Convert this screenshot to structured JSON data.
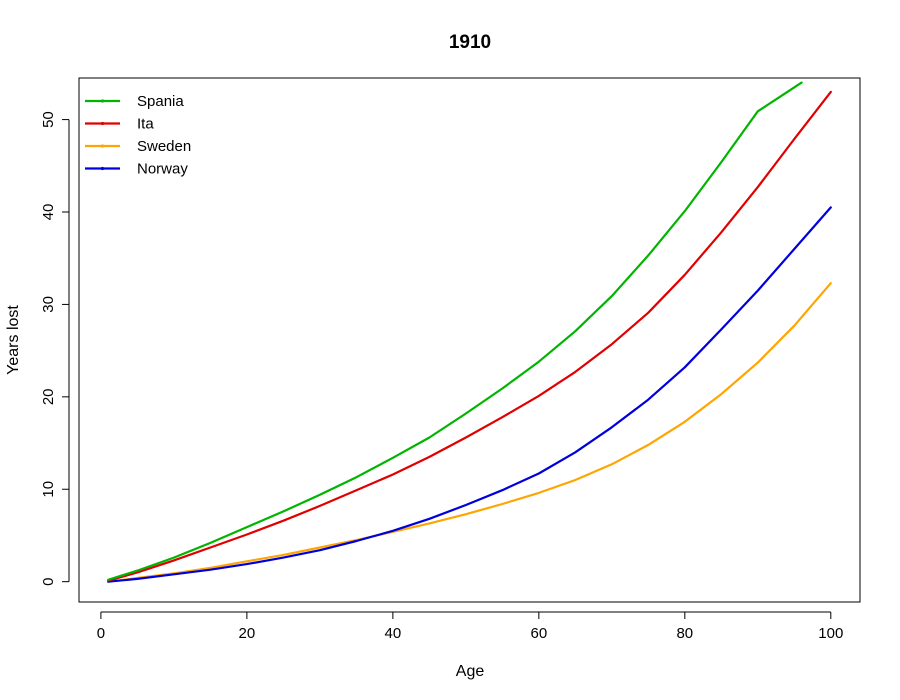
{
  "chart_data": {
    "type": "line",
    "title": "1910",
    "xlabel": "Age",
    "ylabel": "Years lost",
    "xlim": [
      -3,
      104
    ],
    "ylim": [
      -2.2,
      54.5
    ],
    "xticks": [
      0,
      20,
      40,
      60,
      80,
      100
    ],
    "yticks": [
      0,
      10,
      20,
      30,
      40,
      50
    ],
    "grid": false,
    "legend_position": "top-left",
    "series": [
      {
        "name": "Spania",
        "color": "#00b400",
        "x": [
          1,
          5,
          10,
          15,
          20,
          25,
          30,
          35,
          40,
          45,
          50,
          55,
          60,
          65,
          70,
          75,
          80,
          85,
          90,
          96
        ],
        "y": [
          0.2,
          1.2,
          2.6,
          4.2,
          5.9,
          7.6,
          9.4,
          11.3,
          13.4,
          15.6,
          18.2,
          20.9,
          23.8,
          27.1,
          30.9,
          35.3,
          40.1,
          45.4,
          50.9,
          54.0
        ]
      },
      {
        "name": "Ita",
        "color": "#e00000",
        "x": [
          1,
          5,
          10,
          15,
          20,
          25,
          30,
          35,
          40,
          45,
          50,
          55,
          60,
          65,
          70,
          75,
          80,
          85,
          90,
          95,
          100
        ],
        "y": [
          0.1,
          1.0,
          2.3,
          3.7,
          5.1,
          6.6,
          8.2,
          9.9,
          11.6,
          13.5,
          15.6,
          17.8,
          20.1,
          22.7,
          25.7,
          29.1,
          33.2,
          37.8,
          42.7,
          47.9,
          53.0
        ]
      },
      {
        "name": "Sweden",
        "color": "#ffa500",
        "x": [
          1,
          5,
          10,
          15,
          20,
          25,
          30,
          35,
          40,
          45,
          50,
          55,
          60,
          65,
          70,
          75,
          80,
          85,
          90,
          95,
          100
        ],
        "y": [
          0.0,
          0.4,
          0.9,
          1.5,
          2.2,
          2.9,
          3.7,
          4.5,
          5.4,
          6.3,
          7.3,
          8.4,
          9.6,
          11.0,
          12.7,
          14.8,
          17.3,
          20.3,
          23.7,
          27.7,
          32.3
        ]
      },
      {
        "name": "Norway",
        "color": "#0000dc",
        "x": [
          1,
          5,
          10,
          15,
          20,
          25,
          30,
          35,
          40,
          45,
          50,
          55,
          60,
          65,
          70,
          75,
          80,
          85,
          90,
          95,
          100
        ],
        "y": [
          0.0,
          0.3,
          0.8,
          1.3,
          1.9,
          2.6,
          3.4,
          4.4,
          5.5,
          6.8,
          8.3,
          9.9,
          11.7,
          14.0,
          16.7,
          19.7,
          23.2,
          27.3,
          31.5,
          36.0,
          40.5
        ]
      }
    ]
  }
}
